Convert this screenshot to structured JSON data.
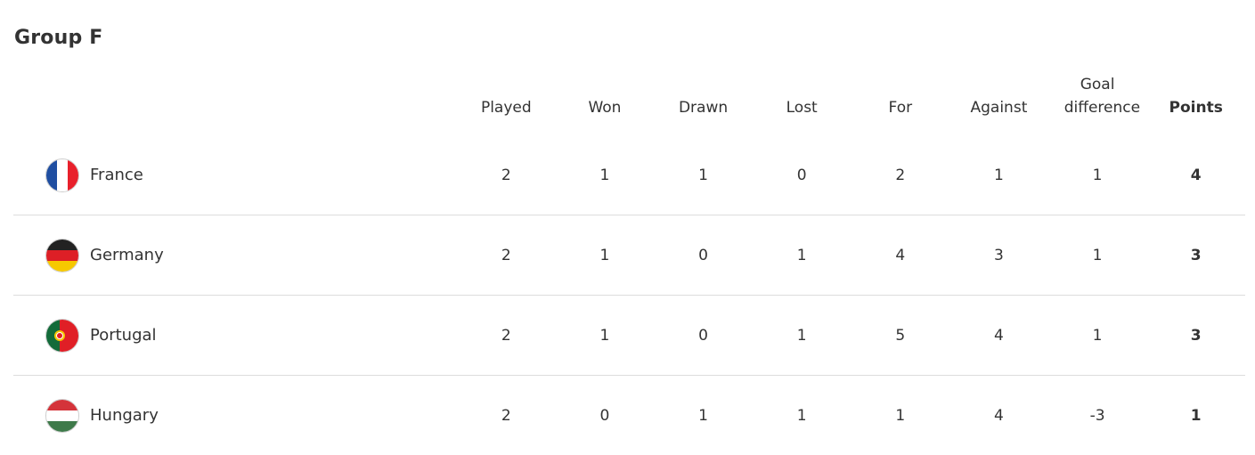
{
  "group_title": "Group F",
  "columns": {
    "played": "Played",
    "won": "Won",
    "drawn": "Drawn",
    "lost": "Lost",
    "for": "For",
    "against": "Against",
    "goal_difference": "Goal difference",
    "points": "Points"
  },
  "rows": [
    {
      "team": "France",
      "flag": "france-flag",
      "played": "2",
      "won": "1",
      "drawn": "1",
      "lost": "0",
      "for": "2",
      "against": "1",
      "gd": "1",
      "points": "4"
    },
    {
      "team": "Germany",
      "flag": "germany-flag",
      "played": "2",
      "won": "1",
      "drawn": "0",
      "lost": "1",
      "for": "4",
      "against": "3",
      "gd": "1",
      "points": "3"
    },
    {
      "team": "Portugal",
      "flag": "portugal-flag",
      "played": "2",
      "won": "1",
      "drawn": "0",
      "lost": "1",
      "for": "5",
      "against": "4",
      "gd": "1",
      "points": "3"
    },
    {
      "team": "Hungary",
      "flag": "hungary-flag",
      "played": "2",
      "won": "0",
      "drawn": "1",
      "lost": "1",
      "for": "1",
      "against": "4",
      "gd": "-3",
      "points": "1"
    }
  ]
}
